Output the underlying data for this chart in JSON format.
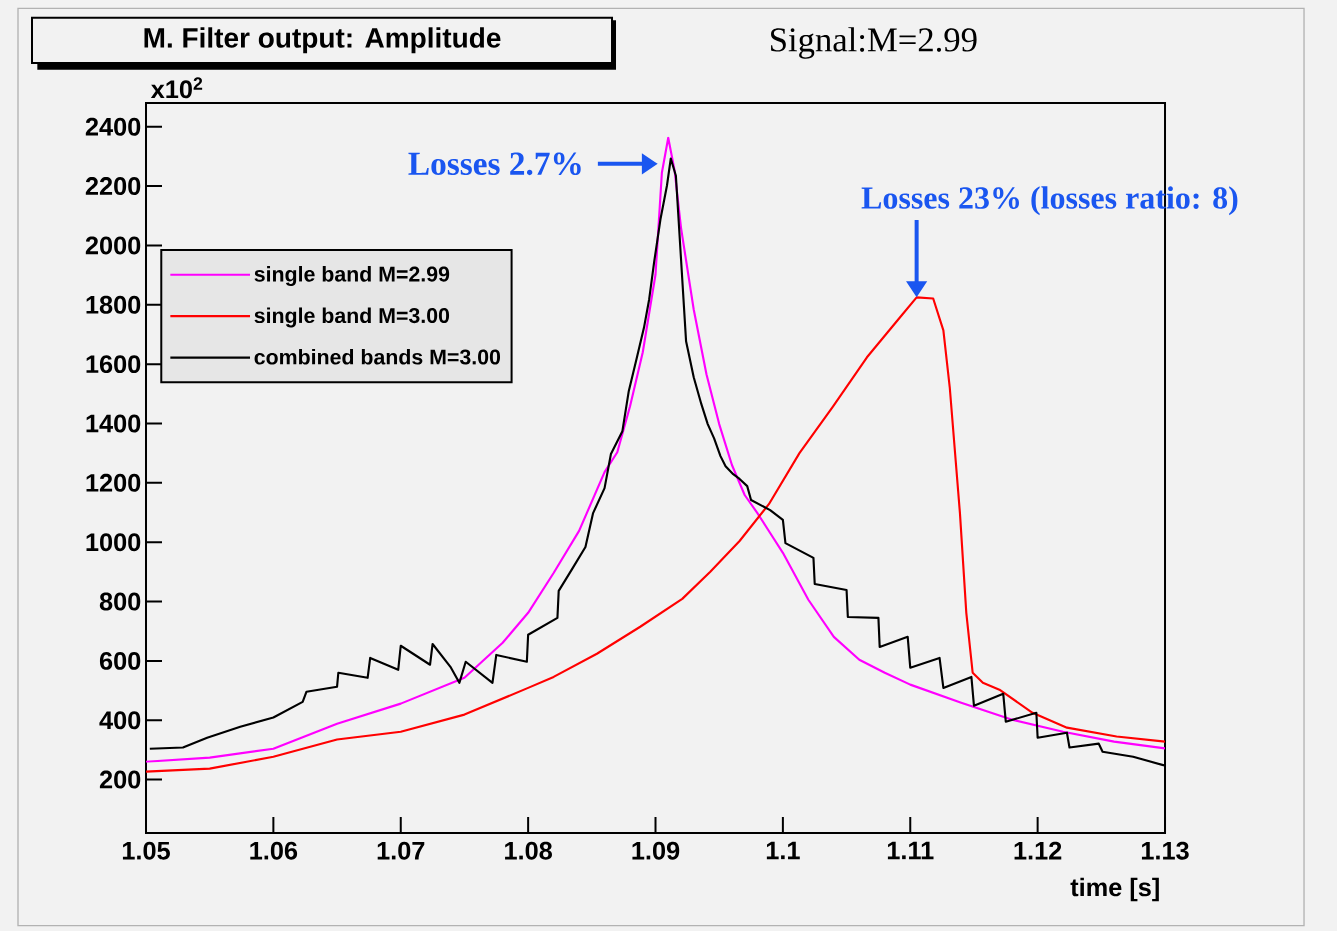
{
  "chart_data": {
    "type": "line",
    "title": "M. Filter output: Amplitude",
    "xlabel": "time [s]",
    "ylabel": "x10$^{2}$",
    "annotations": [
      "Signal:M=2.99",
      {
        "text": "Losses 2.7%",
        "x": 1.0905,
        "y": 2275
      },
      {
        "text": "Losses 23% (losses ratio: 8)",
        "x": 1.1105,
        "y": 1825
      }
    ],
    "xlim": [
      1.05,
      1.13
    ],
    "ylim": [
      20,
      2480
    ],
    "xticks": [
      1.05,
      1.06,
      1.07,
      1.08,
      1.09,
      1.1,
      1.11,
      1.12,
      1.13
    ],
    "yticks": [
      200,
      400,
      600,
      800,
      1000,
      1200,
      1400,
      1600,
      1800,
      2000,
      2200,
      2400
    ],
    "legend": "top left",
    "series": [
      {
        "name": "single band M=2.99",
        "color": "#ff00ff",
        "x": [
          1.05,
          1.055,
          1.06,
          1.065,
          1.07,
          1.075,
          1.078,
          1.08,
          1.082,
          1.084,
          1.086,
          1.087,
          1.088,
          1.089,
          1.09,
          1.0905,
          1.091,
          1.0915,
          1.092,
          1.093,
          1.094,
          1.095,
          1.096,
          1.097,
          1.098,
          1.099,
          1.1,
          1.102,
          1.104,
          1.106,
          1.108,
          1.11,
          1.114,
          1.118,
          1.122,
          1.126,
          1.13
        ],
        "values": [
          260,
          274,
          304,
          388,
          456,
          543,
          661,
          762,
          896,
          1038,
          1236,
          1303,
          1458,
          1640,
          1902,
          2245,
          2363,
          2252,
          2060,
          1784,
          1566,
          1398,
          1260,
          1159,
          1098,
          1031,
          964,
          806,
          681,
          604,
          560,
          520,
          459,
          402,
          361,
          328,
          305
        ]
      },
      {
        "name": "single band M=3.00",
        "color": "#ff0000",
        "x": [
          1.05,
          1.055,
          1.06,
          1.065,
          1.07,
          1.075,
          1.08,
          1.082,
          1.0854,
          1.0888,
          1.0921,
          1.0943,
          1.0966,
          1.0989,
          1.1013,
          1.1039,
          1.1066,
          1.1092,
          1.1105,
          1.1118,
          1.1126,
          1.1131,
          1.1139,
          1.1144,
          1.1149,
          1.1157,
          1.117,
          1.1196,
          1.1223,
          1.1262,
          1.13
        ],
        "values": [
          227,
          237,
          277,
          335,
          361,
          419,
          509,
          546,
          624,
          715,
          809,
          900,
          1004,
          1128,
          1300,
          1455,
          1623,
          1758,
          1825,
          1821,
          1714,
          1522,
          1098,
          762,
          560,
          526,
          503,
          425,
          375,
          345,
          328
        ]
      },
      {
        "name": "combined bands M=3.00",
        "color": "#000000",
        "x": [
          1.0503,
          1.0529,
          1.0548,
          1.0574,
          1.06,
          1.0623,
          1.0626,
          1.065,
          1.0651,
          1.0674,
          1.0676,
          1.0698,
          1.07,
          1.0723,
          1.0725,
          1.0739,
          1.0746,
          1.0751,
          1.0772,
          1.0775,
          1.0799,
          1.08,
          1.0823,
          1.0824,
          1.0834,
          1.0845,
          1.0851,
          1.086,
          1.0865,
          1.0874,
          1.0879,
          1.0885,
          1.0891,
          1.0895,
          1.0899,
          1.0904,
          1.0909,
          1.0912,
          1.0916,
          1.092,
          1.0924,
          1.093,
          1.0936,
          1.0941,
          1.0946,
          1.0951,
          1.0955,
          1.0961,
          1.0966,
          1.0972,
          1.0975,
          1.099,
          1.1,
          1.1002,
          1.1024,
          1.1025,
          1.105,
          1.1051,
          1.1075,
          1.1076,
          1.1098,
          1.11,
          1.1123,
          1.1126,
          1.1148,
          1.115,
          1.1173,
          1.1175,
          1.1199,
          1.12,
          1.1223,
          1.1225,
          1.1248,
          1.1251,
          1.1275,
          1.13
        ],
        "values": [
          304,
          308,
          341,
          378,
          409,
          462,
          496,
          513,
          560,
          543,
          610,
          570,
          651,
          587,
          657,
          580,
          526,
          597,
          526,
          620,
          597,
          688,
          745,
          836,
          906,
          984,
          1098,
          1182,
          1297,
          1374,
          1509,
          1616,
          1724,
          1818,
          1946,
          2091,
          2202,
          2293,
          2235,
          1956,
          1677,
          1556,
          1465,
          1398,
          1350,
          1290,
          1256,
          1229,
          1213,
          1189,
          1142,
          1108,
          1075,
          997,
          947,
          859,
          839,
          748,
          745,
          647,
          681,
          577,
          610,
          509,
          546,
          449,
          489,
          395,
          425,
          341,
          358,
          308,
          321,
          294,
          277,
          247
        ]
      }
    ]
  }
}
